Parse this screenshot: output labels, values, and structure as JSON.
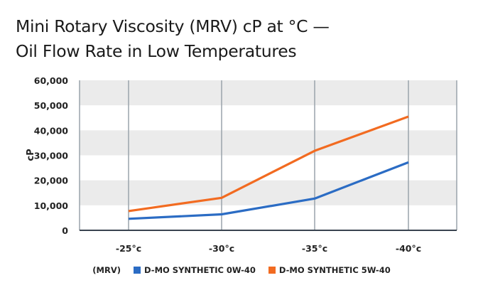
{
  "chart_data": {
    "type": "line",
    "title_lines": [
      "Mini Rotary Viscosity (MRV) cP at °C —",
      "Oil Flow Rate in Low Temperatures"
    ],
    "xlabel": "",
    "ylabel": "cP",
    "categories": [
      "-25°c",
      "-30°c",
      "-35°c",
      "-40°c"
    ],
    "ylim": [
      0,
      60000
    ],
    "yticks": [
      0,
      10000,
      20000,
      30000,
      40000,
      50000,
      60000
    ],
    "ytick_labels": [
      "0",
      "10,000",
      "20,000",
      "30,000",
      "40,000",
      "50,000",
      "60,000"
    ],
    "grid": "alternating horizontal bands + vertical lines",
    "legend_position": "bottom",
    "legend_prefix": "(MRV)",
    "series": [
      {
        "name": "D-MO SYNTHETIC 0W-40",
        "color": "#2b6cc4",
        "values": [
          4600,
          6400,
          12700,
          27200
        ]
      },
      {
        "name": "D-MO SYNTHETIC 5W-40",
        "color": "#f26b21",
        "values": [
          7700,
          13000,
          31800,
          45500
        ]
      }
    ]
  }
}
